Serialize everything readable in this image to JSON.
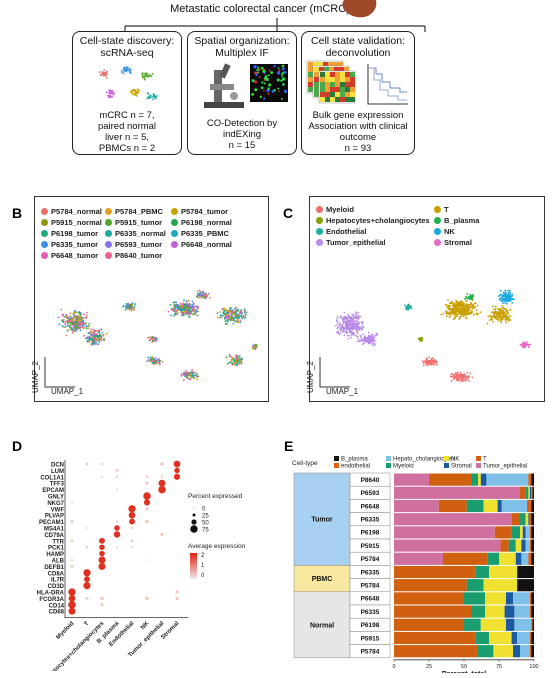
{
  "header": {
    "title": "Metastatic colorectal cancer (mCRC)"
  },
  "boxes": [
    {
      "title": "Cell-state discovery:\nscRNA-seq",
      "caption": [
        "mCRC n = 7,",
        "paired normal",
        "liver n = 5,",
        "PBMCs n = 2"
      ]
    },
    {
      "title": "Spatial organization:\nMultiplex IF",
      "caption": [
        "CO-Detection by",
        "indEXing",
        "n = 15"
      ]
    },
    {
      "title": "Cell state validation:\ndeconvolution",
      "caption": [
        "Bulk gene expression",
        "Association with clinical",
        "outcome",
        "n = 93"
      ]
    }
  ],
  "panelB": {
    "label": "B",
    "legend": [
      {
        "name": "P5784_normal",
        "color": "#e8736b"
      },
      {
        "name": "P5784_PBMC",
        "color": "#e0a020"
      },
      {
        "name": "P5784_tumor",
        "color": "#c9a000"
      },
      {
        "name": "P5915_normal",
        "color": "#8c9a10"
      },
      {
        "name": "P5915_tumor",
        "color": "#52a52c"
      },
      {
        "name": "P6198_normal",
        "color": "#22a64a"
      },
      {
        "name": "P6198_tumor",
        "color": "#1fa97a"
      },
      {
        "name": "P6335_normal",
        "color": "#1aaca4"
      },
      {
        "name": "P6335_PBMC",
        "color": "#1ea8c6"
      },
      {
        "name": "P6335_tumor",
        "color": "#3a8fe0"
      },
      {
        "name": "P6593_tumor",
        "color": "#8a72e8"
      },
      {
        "name": "P6648_normal",
        "color": "#c65ed8"
      },
      {
        "name": "P6648_tumor",
        "color": "#e65ab8"
      },
      {
        "name": "P8640_tumor",
        "color": "#ee6090"
      }
    ],
    "xlabel": "UMAP_1",
    "ylabel": "UMAP_2"
  },
  "panelC": {
    "label": "C",
    "legend": [
      {
        "name": "Myeloid",
        "color": "#f07070"
      },
      {
        "name": "T",
        "color": "#c9a000"
      },
      {
        "name": "Hepatocytes+cholangiocytes",
        "color": "#8aa000"
      },
      {
        "name": "B_plasma",
        "color": "#22b04a"
      },
      {
        "name": "Endothelial",
        "color": "#1cb0a0"
      },
      {
        "name": "NK",
        "color": "#1aa8e0"
      },
      {
        "name": "Tumor_epithelial",
        "color": "#b88ae8"
      },
      {
        "name": "Stromal",
        "color": "#e66ac8"
      }
    ],
    "xlabel": "UMAP_1",
    "ylabel": "UMAP_2"
  },
  "panelD": {
    "label": "D",
    "genes": [
      "DCN",
      "LUM",
      "COL1A1",
      "TFF3",
      "EPCAM",
      "GNLY",
      "NKG7",
      "VWF",
      "PLVAP",
      "PECAM1",
      "MS4A1",
      "CD79A",
      "TTR",
      "PCK1",
      "HAMP",
      "ALB",
      "DEFB1",
      "CD8A",
      "IL7R",
      "CD3D",
      "HLA-DRA",
      "FCGR3A",
      "CD14",
      "CD68"
    ],
    "celltypes": [
      "Myeloid",
      "T",
      "Hepatocytes+cholangiocytes",
      "B_plasma",
      "Endothelial",
      "NK",
      "Tumor_epithelial",
      "Stromal"
    ],
    "size_legend_title": "Percent expressed",
    "size_legend_values": [
      "0",
      "25",
      "50",
      "75"
    ],
    "color_legend_title": "Average expression",
    "color_legend_values": [
      "2",
      "1",
      "0"
    ]
  },
  "panelE": {
    "label": "E",
    "legend_title": "Cell-type",
    "legend": [
      {
        "name": "B_plasma",
        "color": "#111111"
      },
      {
        "name": "endothelial",
        "color": "#e06010"
      },
      {
        "name": "Hepato_cholangiocytes",
        "color": "#7ec0e8"
      },
      {
        "name": "Myeloid",
        "color": "#1a9e70"
      },
      {
        "name": "NK",
        "color": "#f0e030"
      },
      {
        "name": "Stromal",
        "color": "#1a5aa0"
      },
      {
        "name": "T",
        "color": "#d06010"
      },
      {
        "name": "Tumor_epithelial",
        "color": "#d070a0"
      }
    ],
    "groups": [
      {
        "name": "Tumor",
        "color": "#a8d0f0"
      },
      {
        "name": "PBMC",
        "color": "#f8e8a0"
      },
      {
        "name": "Normal",
        "color": "#e6e6e6"
      }
    ],
    "samples": [
      "P8640",
      "P6593",
      "P6648",
      "P6335",
      "P6198",
      "P5915",
      "P5784",
      "P6335",
      "P5784",
      "P6648",
      "P6335",
      "P6198",
      "P5915",
      "P5784"
    ],
    "xlabel": "Percent_total",
    "xticks": [
      "0",
      "25",
      "50",
      "75",
      "100"
    ]
  },
  "chart_data": {
    "type": "bar",
    "title": "",
    "xlabel": "Percent_total",
    "ylabel": "",
    "xlim": [
      0,
      100
    ],
    "categories": [
      "P8640",
      "P6593",
      "P6648",
      "P6335",
      "P6198",
      "P5915",
      "P5784",
      "P6335",
      "P5784",
      "P6648",
      "P6335",
      "P6198",
      "P5915",
      "P5784"
    ],
    "series": [
      {
        "name": "Tumor_epithelial",
        "values": [
          25,
          90,
          32,
          84,
          72,
          76,
          35,
          0,
          0,
          0,
          0,
          0,
          0,
          0
        ]
      },
      {
        "name": "T",
        "values": [
          30,
          4,
          20,
          6,
          12,
          6,
          32,
          58,
          52,
          50,
          55,
          50,
          58,
          60
        ]
      },
      {
        "name": "Myeloid",
        "values": [
          5,
          2,
          12,
          4,
          6,
          5,
          8,
          10,
          12,
          15,
          10,
          12,
          10,
          11
        ]
      },
      {
        "name": "NK",
        "values": [
          2,
          1,
          10,
          2,
          2,
          4,
          12,
          20,
          24,
          15,
          14,
          18,
          16,
          14
        ]
      },
      {
        "name": "Stromal",
        "values": [
          4,
          1,
          3,
          1,
          2,
          3,
          4,
          0,
          0,
          5,
          7,
          6,
          4,
          5
        ]
      },
      {
        "name": "Hepato_cholangiocytes",
        "values": [
          30,
          0,
          18,
          0,
          3,
          3,
          5,
          0,
          0,
          12,
          11,
          12,
          9,
          7
        ]
      },
      {
        "name": "endothelial",
        "values": [
          2,
          1,
          3,
          1,
          1,
          1,
          2,
          0,
          0,
          1,
          1,
          1,
          1,
          1
        ]
      },
      {
        "name": "B_plasma",
        "values": [
          2,
          1,
          2,
          2,
          2,
          2,
          2,
          12,
          12,
          2,
          2,
          1,
          2,
          2
        ]
      }
    ]
  }
}
